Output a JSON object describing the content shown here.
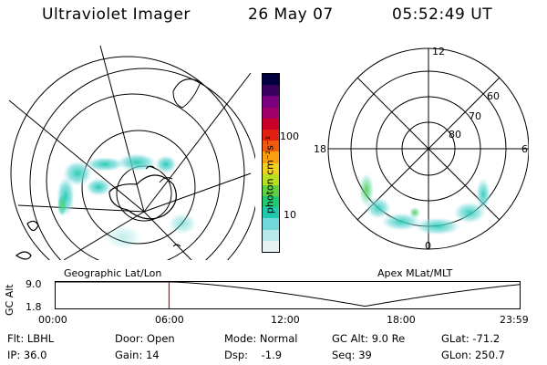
{
  "header": {
    "instrument": "Ultraviolet Imager",
    "date": "26 May 07",
    "time": "05:52:49 UT"
  },
  "geo_panel": {
    "label": "Geographic Lat/Lon"
  },
  "colorbar": {
    "unit": "photon cm⁻²s⁻¹",
    "ticks": [
      "100",
      "10"
    ],
    "colors": [
      "#000040",
      "#3a0060",
      "#7a0080",
      "#a0006a",
      "#c8002a",
      "#e02010",
      "#f05a10",
      "#f8a010",
      "#f0d020",
      "#b8e020",
      "#60d040",
      "#20c870",
      "#20c8b0",
      "#70d8d8",
      "#b8e8ea",
      "#e6f2f2"
    ]
  },
  "mag_panel": {
    "label": "Apex MLat/MLT",
    "mlt_labels": {
      "top": "12",
      "left": "18",
      "right": "6",
      "bottom": "0"
    },
    "mlat_labels": [
      "60",
      "70",
      "80"
    ]
  },
  "altitude_plot": {
    "ylabel": "GC Alt",
    "ymax": "9.0",
    "ymin": "1.8",
    "x_ticks": [
      "00:00",
      "06:00",
      "12:00",
      "18:00",
      "23:59"
    ],
    "current_time_hours": 5.88,
    "marker_color": "#e00000"
  },
  "status": {
    "flt_label": "Flt:",
    "flt_value": "LBHL",
    "ip_label": "IP:",
    "ip_value": "36.0",
    "door_label": "Door:",
    "door_value": "Open",
    "gain_label": "Gain:",
    "gain_value": "14",
    "mode_label": "Mode:",
    "mode_value": "Normal",
    "dsp_label": "Dsp:",
    "dsp_value": "-1.9",
    "gcalt_label": "GC Alt:",
    "gcalt_value": "9.0 Re",
    "seq_label": "Seq:",
    "seq_value": "39",
    "glat_label": "GLat:",
    "glat_value": "-71.2",
    "glon_label": "GLon:",
    "glon_value": "250.7"
  }
}
